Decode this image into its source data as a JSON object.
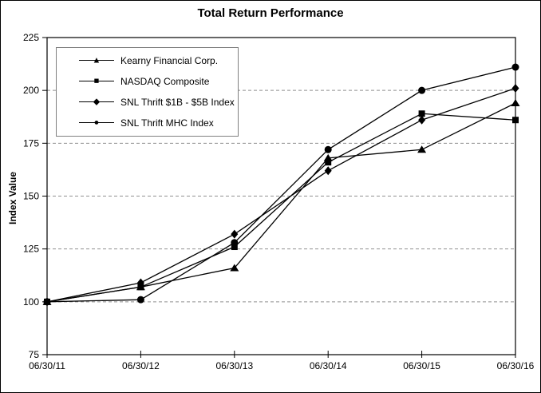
{
  "chart_data": {
    "type": "line",
    "title": "Total Return Performance",
    "xlabel": "",
    "ylabel": "Index Value",
    "x_labels": [
      "06/30/11",
      "06/30/12",
      "06/30/13",
      "06/30/14",
      "06/30/15",
      "06/30/16"
    ],
    "y_ticks": [
      225,
      200,
      175,
      150,
      125,
      100,
      75
    ],
    "ylim": [
      75,
      225
    ],
    "grid_values": [
      200,
      175,
      150,
      125,
      100
    ],
    "grid_style": "dashed",
    "legend_position": "top-left-inside",
    "series_color": "#000000",
    "gridline_color": "#909090",
    "legend_border_color": "#808080",
    "series": [
      {
        "name": "Kearny Financial Corp.",
        "marker": "triangle",
        "marker_icon": "triangle-marker-icon",
        "values": [
          100,
          107,
          116,
          168,
          172,
          194
        ]
      },
      {
        "name": "NASDAQ Composite",
        "marker": "square",
        "marker_icon": "square-marker-icon",
        "values": [
          100,
          107,
          126,
          166,
          189,
          186
        ]
      },
      {
        "name": "SNL Thrift $1B - $5B Index",
        "marker": "diamond",
        "marker_icon": "diamond-marker-icon",
        "values": [
          100,
          109,
          132,
          162,
          186,
          201
        ]
      },
      {
        "name": "SNL Thrift MHC Index",
        "marker": "circle",
        "marker_icon": "circle-marker-icon",
        "values": [
          100,
          101,
          128,
          172,
          200,
          211
        ]
      }
    ]
  }
}
